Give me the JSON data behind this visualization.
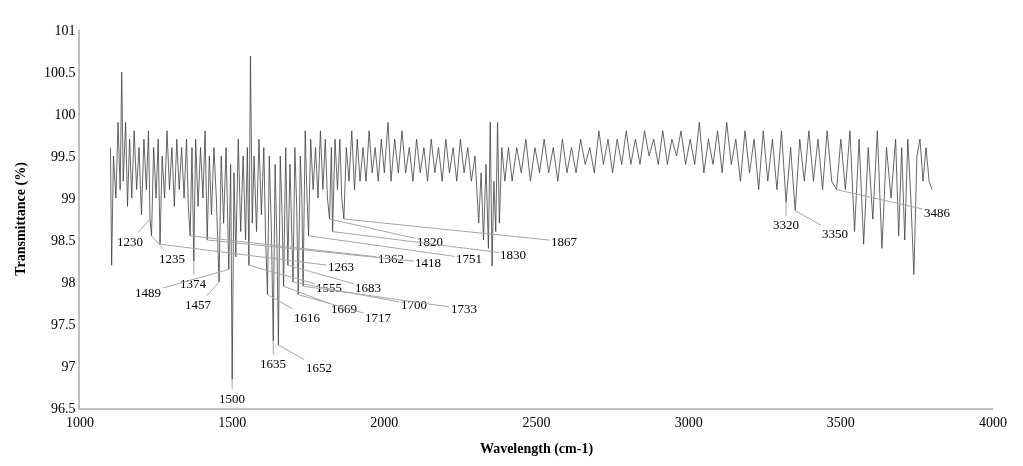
{
  "chart_data": {
    "type": "line",
    "xlabel": "Wavelength (cm-1)",
    "ylabel": "Transmittance (%)",
    "xlim": [
      1000,
      4000
    ],
    "xticks": [
      1000,
      1500,
      2000,
      2500,
      3000,
      3500,
      4000
    ],
    "ylim": [
      96.5,
      101
    ],
    "yticks": [
      96.5,
      97,
      97.5,
      98,
      98.5,
      99,
      99.5,
      100,
      100.5,
      101
    ],
    "grid": false,
    "marker": "none",
    "line_style": "solid",
    "series": [
      {
        "color": "#404040",
        "x": [
          1100,
          1104,
          1110,
          1118,
          1125,
          1132,
          1137,
          1142,
          1150,
          1156,
          1163,
          1170,
          1178,
          1186,
          1194,
          1202,
          1210,
          1218,
          1225,
          1230,
          1235,
          1242,
          1250,
          1257,
          1263,
          1270,
          1278,
          1286,
          1294,
          1302,
          1310,
          1318,
          1326,
          1334,
          1342,
          1350,
          1356,
          1362,
          1368,
          1374,
          1380,
          1388,
          1396,
          1404,
          1411,
          1418,
          1425,
          1432,
          1440,
          1448,
          1457,
          1464,
          1472,
          1480,
          1489,
          1495,
          1500,
          1506,
          1512,
          1520,
          1528,
          1536,
          1544,
          1550,
          1555,
          1560,
          1566,
          1572,
          1580,
          1588,
          1596,
          1604,
          1610,
          1616,
          1622,
          1629,
          1635,
          1641,
          1647,
          1652,
          1658,
          1664,
          1669,
          1676,
          1683,
          1690,
          1695,
          1700,
          1706,
          1712,
          1717,
          1724,
          1729,
          1733,
          1740,
          1746,
          1751,
          1758,
          1766,
          1774,
          1782,
          1790,
          1798,
          1806,
          1813,
          1820,
          1826,
          1830,
          1838,
          1846,
          1854,
          1860,
          1867,
          1875,
          1884,
          1893,
          1902,
          1911,
          1920,
          1930,
          1940,
          1950,
          1960,
          1970,
          1980,
          1990,
          2000,
          2012,
          2022,
          2034,
          2046,
          2058,
          2070,
          2082,
          2094,
          2106,
          2118,
          2130,
          2142,
          2154,
          2166,
          2178,
          2190,
          2202,
          2214,
          2226,
          2238,
          2250,
          2262,
          2274,
          2286,
          2298,
          2310,
          2318,
          2326,
          2334,
          2342,
          2348,
          2354,
          2360,
          2366,
          2372,
          2378,
          2386,
          2396,
          2408,
          2420,
          2435,
          2450,
          2465,
          2480,
          2495,
          2510,
          2525,
          2540,
          2555,
          2570,
          2585,
          2600,
          2615,
          2630,
          2645,
          2660,
          2675,
          2690,
          2705,
          2720,
          2735,
          2750,
          2765,
          2780,
          2795,
          2810,
          2825,
          2840,
          2855,
          2870,
          2885,
          2900,
          2915,
          2930,
          2945,
          2960,
          2975,
          2990,
          3005,
          3020,
          3035,
          3050,
          3065,
          3080,
          3095,
          3110,
          3125,
          3140,
          3155,
          3170,
          3185,
          3200,
          3215,
          3230,
          3245,
          3260,
          3275,
          3290,
          3305,
          3320,
          3335,
          3350,
          3365,
          3380,
          3395,
          3410,
          3425,
          3440,
          3455,
          3470,
          3486,
          3500,
          3515,
          3530,
          3545,
          3560,
          3575,
          3590,
          3605,
          3620,
          3635,
          3650,
          3665,
          3680,
          3690,
          3700,
          3710,
          3720,
          3730,
          3740,
          3750,
          3760,
          3770,
          3780,
          3790,
          3800
        ],
        "values": [
          99.6,
          98.2,
          99.5,
          99.0,
          99.9,
          99.1,
          100.5,
          99.2,
          99.9,
          98.9,
          99.7,
          99.0,
          99.8,
          99.1,
          99.6,
          98.8,
          99.7,
          99.1,
          99.8,
          98.75,
          98.55,
          99.6,
          99.0,
          99.7,
          98.45,
          99.5,
          99.0,
          99.8,
          99.1,
          99.6,
          98.9,
          99.7,
          99.1,
          99.6,
          99.0,
          99.7,
          98.9,
          98.55,
          99.6,
          98.25,
          99.7,
          98.9,
          99.6,
          99.0,
          99.8,
          98.5,
          99.5,
          98.8,
          99.6,
          99.0,
          98.0,
          99.5,
          98.7,
          99.6,
          98.15,
          99.4,
          96.84,
          99.3,
          98.3,
          99.7,
          98.6,
          99.5,
          98.5,
          99.6,
          98.2,
          100.69,
          98.7,
          99.5,
          98.6,
          99.7,
          98.8,
          99.6,
          98.5,
          97.85,
          99.5,
          98.6,
          97.3,
          99.4,
          98.5,
          97.25,
          99.5,
          98.8,
          97.95,
          99.6,
          98.2,
          99.4,
          98.7,
          98.0,
          99.6,
          98.9,
          97.85,
          99.5,
          99.0,
          97.95,
          99.8,
          99.0,
          98.55,
          99.7,
          99.1,
          99.6,
          99.0,
          99.8,
          99.1,
          99.7,
          99.0,
          98.75,
          99.6,
          98.6,
          99.7,
          99.1,
          99.7,
          99.0,
          98.75,
          99.6,
          99.2,
          99.8,
          99.1,
          99.7,
          99.2,
          99.6,
          99.2,
          99.8,
          99.3,
          99.6,
          99.2,
          99.7,
          99.3,
          99.9,
          99.2,
          99.7,
          99.3,
          99.8,
          99.3,
          99.6,
          99.2,
          99.7,
          99.3,
          99.6,
          99.2,
          99.7,
          99.3,
          99.6,
          99.2,
          99.7,
          99.3,
          99.6,
          99.2,
          99.7,
          99.3,
          99.6,
          99.2,
          99.5,
          98.7,
          99.3,
          98.5,
          99.4,
          98.4,
          99.9,
          98.19,
          99.2,
          98.6,
          99.9,
          98.7,
          99.6,
          99.2,
          99.6,
          99.2,
          99.6,
          99.3,
          99.7,
          99.2,
          99.6,
          99.3,
          99.7,
          99.3,
          99.6,
          99.2,
          99.7,
          99.3,
          99.6,
          99.3,
          99.7,
          99.4,
          99.6,
          99.3,
          99.8,
          99.4,
          99.7,
          99.3,
          99.7,
          99.4,
          99.8,
          99.4,
          99.7,
          99.4,
          99.8,
          99.5,
          99.7,
          99.4,
          99.8,
          99.4,
          99.7,
          99.5,
          99.8,
          99.4,
          99.7,
          99.4,
          99.9,
          99.3,
          99.7,
          99.4,
          99.8,
          99.3,
          99.9,
          99.4,
          99.7,
          99.2,
          99.8,
          99.3,
          99.7,
          99.1,
          99.8,
          99.2,
          99.7,
          99.1,
          99.8,
          98.95,
          99.6,
          98.85,
          99.7,
          99.2,
          99.8,
          99.2,
          99.7,
          99.1,
          99.8,
          99.2,
          99.1,
          99.7,
          99.1,
          99.8,
          98.6,
          99.7,
          98.45,
          99.6,
          98.75,
          99.8,
          98.4,
          99.6,
          99.0,
          99.7,
          98.55,
          99.6,
          98.5,
          99.7,
          99.0,
          98.09,
          99.5,
          99.7,
          99.2,
          99.6,
          99.2,
          99.1
        ]
      }
    ],
    "annotations": [
      {
        "text": "1230",
        "x": 1230,
        "y": 98.75
      },
      {
        "text": "1235",
        "x": 1235,
        "y": 98.55
      },
      {
        "text": "1263",
        "x": 1263,
        "y": 98.45
      },
      {
        "text": "1362",
        "x": 1362,
        "y": 98.55
      },
      {
        "text": "1374",
        "x": 1374,
        "y": 98.25
      },
      {
        "text": "1418",
        "x": 1418,
        "y": 98.5
      },
      {
        "text": "1457",
        "x": 1457,
        "y": 98.0
      },
      {
        "text": "1489",
        "x": 1489,
        "y": 98.15
      },
      {
        "text": "1500",
        "x": 1500,
        "y": 96.84
      },
      {
        "text": "1555",
        "x": 1555,
        "y": 98.2
      },
      {
        "text": "1616",
        "x": 1616,
        "y": 97.85
      },
      {
        "text": "1635",
        "x": 1635,
        "y": 97.3
      },
      {
        "text": "1652",
        "x": 1652,
        "y": 97.25
      },
      {
        "text": "1669",
        "x": 1669,
        "y": 97.95
      },
      {
        "text": "1683",
        "x": 1683,
        "y": 98.2
      },
      {
        "text": "1700",
        "x": 1700,
        "y": 98.0
      },
      {
        "text": "1717",
        "x": 1717,
        "y": 97.85
      },
      {
        "text": "1733",
        "x": 1733,
        "y": 97.95
      },
      {
        "text": "1751",
        "x": 1751,
        "y": 98.55
      },
      {
        "text": "1820",
        "x": 1820,
        "y": 98.75
      },
      {
        "text": "1830",
        "x": 1830,
        "y": 98.6
      },
      {
        "text": "1867",
        "x": 1867,
        "y": 98.75
      },
      {
        "text": "3320",
        "x": 3320,
        "y": 98.95
      },
      {
        "text": "3350",
        "x": 3350,
        "y": 98.85
      },
      {
        "text": "3486",
        "x": 3486,
        "y": 99.1
      }
    ]
  }
}
